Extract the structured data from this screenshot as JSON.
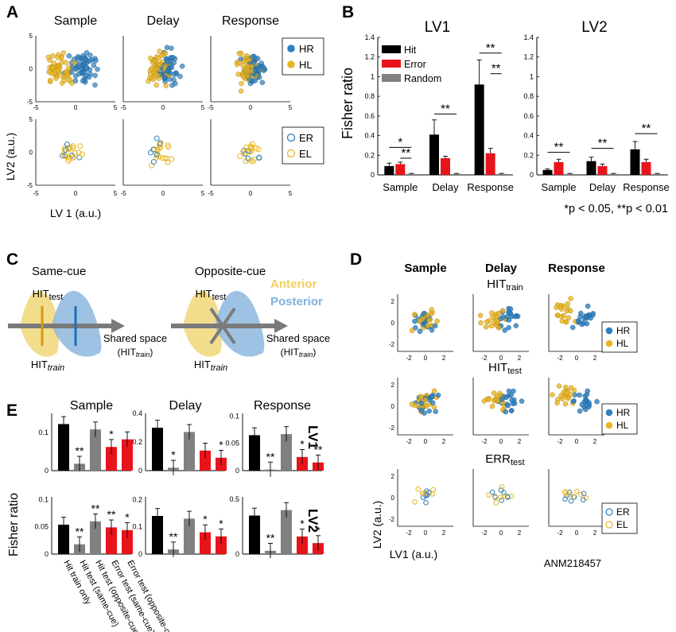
{
  "colors": {
    "blue": "#2e7fbf",
    "orange": "#e8b524",
    "hit": "#000000",
    "error": "#e8141b",
    "random": "#808080",
    "anterior": "#f0d779",
    "posterior": "#8db7df"
  },
  "panelA": {
    "letter": "A",
    "titles": [
      "Sample",
      "Delay",
      "Response"
    ],
    "xlabel": "LV 1 (a.u.)",
    "ylabel": "LV2 (a.u.)",
    "xticks": [
      "-5",
      "0",
      "5"
    ],
    "yticks": [
      "5",
      "0",
      "-5"
    ],
    "legend_top": [
      "HR",
      "HL"
    ],
    "legend_bottom": [
      "ER",
      "EL"
    ]
  },
  "panelB": {
    "letter": "B",
    "ylabel": "Fisher ratio",
    "note": "*p < 0.05, **p < 0.01",
    "legend": [
      "Hit",
      "Error",
      "Random"
    ],
    "chart_data": [
      {
        "type": "bar",
        "title": "LV1",
        "categories": [
          "Sample",
          "Delay",
          "Response"
        ],
        "ylim": [
          0,
          1.4
        ],
        "yticks": [
          "0",
          "0.2",
          "0.4",
          "0.6",
          "0.8",
          "1",
          "1.2",
          "1.4"
        ],
        "series": [
          {
            "name": "Hit",
            "values": [
              0.09,
              0.41,
              0.92
            ],
            "err": [
              0.03,
              0.15,
              0.25
            ]
          },
          {
            "name": "Error",
            "values": [
              0.11,
              0.17,
              0.22
            ],
            "err": [
              0.02,
              0.02,
              0.05
            ]
          },
          {
            "name": "Random",
            "values": [
              0.01,
              0.01,
              0.01
            ],
            "err": [
              0.005,
              0.005,
              0.005
            ]
          }
        ],
        "sig": [
          "*",
          "**",
          "**",
          "**",
          "**"
        ]
      },
      {
        "type": "bar",
        "title": "LV2",
        "categories": [
          "Sample",
          "Delay",
          "Response"
        ],
        "ylim": [
          0,
          1.4
        ],
        "yticks": [
          "0",
          "0.2",
          "0.4",
          "0.6",
          "0.8",
          "1",
          "1.2",
          "1.4"
        ],
        "series": [
          {
            "name": "Hit",
            "values": [
              0.05,
              0.14,
              0.26
            ],
            "err": [
              0.01,
              0.04,
              0.08
            ]
          },
          {
            "name": "Error",
            "values": [
              0.13,
              0.09,
              0.13
            ],
            "err": [
              0.03,
              0.02,
              0.03
            ]
          },
          {
            "name": "Random",
            "values": [
              0.01,
              0.01,
              0.01
            ],
            "err": [
              0.005,
              0.005,
              0.005
            ]
          }
        ],
        "sig": [
          "**",
          "**",
          "**"
        ]
      }
    ]
  },
  "panelC": {
    "letter": "C",
    "left_title": "Same-cue",
    "right_title": "Opposite-cue",
    "hit": "HIT",
    "test_sub": "test",
    "train_sub": "train",
    "shared": "Shared  space",
    "anterior": "Anterior",
    "posterior": "Posterior"
  },
  "panelD": {
    "letter": "D",
    "titles": [
      "Sample",
      "Delay",
      "Response"
    ],
    "row_labels": [
      {
        "main": "HIT",
        "sub": "train"
      },
      {
        "main": "HIT",
        "sub": "test"
      },
      {
        "main": "ERR",
        "sub": "test"
      }
    ],
    "legend_hit": [
      "HR",
      "HL"
    ],
    "legend_err": [
      "ER",
      "EL"
    ],
    "xticks": [
      "-2",
      "0",
      "2"
    ],
    "yticks": [
      "2",
      "0",
      "-2"
    ],
    "xlabel": "LV1 (a.u.)",
    "ylabel": "LV2 (a.u.)",
    "animal": "ANM218457"
  },
  "panelE": {
    "letter": "E",
    "titles": [
      "Sample",
      "Delay",
      "Response"
    ],
    "row_labels": [
      "LV1",
      "LV2"
    ],
    "ylabel": "Fisher ratio",
    "categories": [
      "Hit train only",
      "Hit test (same-cue)",
      "Hit test (opposite-cue)",
      "Error test (same-cue)",
      "Error test (opposite-cue)"
    ],
    "chart_data": [
      {
        "type": "bar",
        "title": "Sample",
        "row": "LV1",
        "ylim": [
          0,
          0.15
        ],
        "yticks": [
          "0.1",
          "0"
        ],
        "values": [
          0.122,
          0.018,
          0.108,
          0.062,
          0.082
        ],
        "sig": [
          "",
          "**",
          "",
          "*",
          ""
        ]
      },
      {
        "type": "bar",
        "title": "Delay",
        "row": "LV1",
        "ylim": [
          0,
          0.4
        ],
        "yticks": [
          "0.4",
          "0.2",
          "0"
        ],
        "values": [
          0.3,
          0.02,
          0.27,
          0.14,
          0.09
        ],
        "sig": [
          "",
          "*",
          "",
          "",
          "*"
        ]
      },
      {
        "type": "bar",
        "title": "Response",
        "row": "LV1",
        "ylim": [
          0,
          0.105
        ],
        "yticks": [
          "0.1",
          "0.05",
          "0"
        ],
        "values": [
          0.065,
          0.002,
          0.067,
          0.025,
          0.015
        ],
        "sig": [
          "",
          "**",
          "",
          "*",
          "**"
        ]
      },
      {
        "type": "bar",
        "title": "Sample",
        "row": "LV2",
        "ylim": [
          0,
          0.105
        ],
        "yticks": [
          "0.1",
          "0.05",
          "0"
        ],
        "values": [
          0.054,
          0.018,
          0.06,
          0.049,
          0.044
        ],
        "sig": [
          "",
          "**",
          "**",
          "**",
          "*"
        ]
      },
      {
        "type": "bar",
        "title": "Delay",
        "row": "LV2",
        "ylim": [
          0,
          0.21
        ],
        "yticks": [
          "0.2",
          "0.1",
          "0"
        ],
        "values": [
          0.14,
          0.017,
          0.13,
          0.08,
          0.065
        ],
        "sig": [
          "",
          "**",
          "",
          "*",
          "*"
        ]
      },
      {
        "type": "bar",
        "title": "Response",
        "row": "LV2",
        "ylim": [
          0,
          0.52
        ],
        "yticks": [
          "0.5",
          "0"
        ],
        "values": [
          0.35,
          0.03,
          0.4,
          0.16,
          0.1
        ],
        "sig": [
          "",
          "**",
          "",
          "*",
          "*"
        ]
      }
    ]
  }
}
